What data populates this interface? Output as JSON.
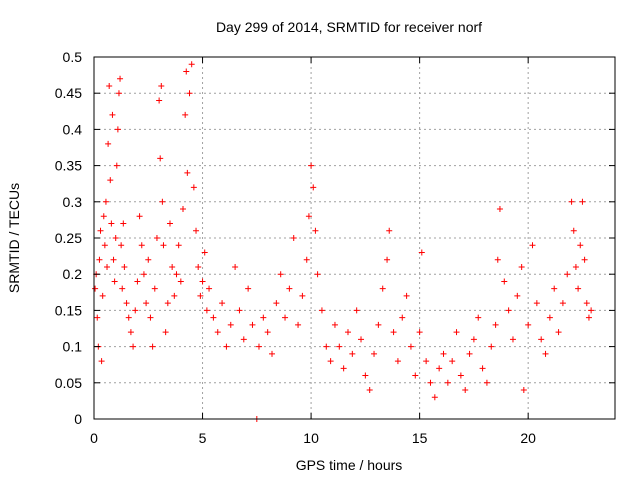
{
  "chart_data": {
    "type": "scatter",
    "title": "Day 299 of 2014, SRMTID for receiver norf",
    "xlabel": "GPS time / hours",
    "ylabel": "SRMTID / TECUs",
    "xlim": [
      0,
      24
    ],
    "ylim": [
      0,
      0.5
    ],
    "x_ticks": [
      0,
      5,
      10,
      15,
      20
    ],
    "x_tick_labels": [
      "0",
      "5",
      "10",
      "15",
      "20"
    ],
    "y_ticks": [
      0,
      0.05,
      0.1,
      0.15,
      0.2,
      0.25,
      0.3,
      0.35,
      0.4,
      0.45,
      0.5
    ],
    "y_tick_labels": [
      "0",
      "0.05",
      "0.1",
      "0.15",
      "0.2",
      "0.25",
      "0.3",
      "0.35",
      "0.4",
      "0.45",
      "0.5"
    ],
    "grid": true,
    "marker": "+",
    "colors": {
      "series": "#ff0000",
      "grid": "#a0a0a0",
      "axis": "#000000"
    },
    "series": [
      {
        "name": "SRMTID",
        "points": [
          [
            0.05,
            0.18
          ],
          [
            0.1,
            0.2
          ],
          [
            0.15,
            0.14
          ],
          [
            0.2,
            0.1
          ],
          [
            0.25,
            0.22
          ],
          [
            0.3,
            0.26
          ],
          [
            0.35,
            0.08
          ],
          [
            0.4,
            0.17
          ],
          [
            0.45,
            0.28
          ],
          [
            0.5,
            0.24
          ],
          [
            0.55,
            0.3
          ],
          [
            0.6,
            0.21
          ],
          [
            0.65,
            0.38
          ],
          [
            0.7,
            0.46
          ],
          [
            0.75,
            0.33
          ],
          [
            0.8,
            0.27
          ],
          [
            0.85,
            0.42
          ],
          [
            0.9,
            0.22
          ],
          [
            0.95,
            0.19
          ],
          [
            1.0,
            0.25
          ],
          [
            1.05,
            0.35
          ],
          [
            1.1,
            0.4
          ],
          [
            1.15,
            0.45
          ],
          [
            1.2,
            0.47
          ],
          [
            1.25,
            0.24
          ],
          [
            1.3,
            0.18
          ],
          [
            1.35,
            0.27
          ],
          [
            1.4,
            0.21
          ],
          [
            1.5,
            0.16
          ],
          [
            1.6,
            0.14
          ],
          [
            1.7,
            0.12
          ],
          [
            1.8,
            0.1
          ],
          [
            1.9,
            0.15
          ],
          [
            2.0,
            0.19
          ],
          [
            2.1,
            0.28
          ],
          [
            2.2,
            0.24
          ],
          [
            2.3,
            0.2
          ],
          [
            2.4,
            0.16
          ],
          [
            2.5,
            0.22
          ],
          [
            2.6,
            0.14
          ],
          [
            2.7,
            0.1
          ],
          [
            2.8,
            0.18
          ],
          [
            2.9,
            0.25
          ],
          [
            3.0,
            0.44
          ],
          [
            3.05,
            0.36
          ],
          [
            3.1,
            0.46
          ],
          [
            3.15,
            0.3
          ],
          [
            3.2,
            0.24
          ],
          [
            3.3,
            0.12
          ],
          [
            3.4,
            0.16
          ],
          [
            3.5,
            0.27
          ],
          [
            3.6,
            0.21
          ],
          [
            3.7,
            0.17
          ],
          [
            3.8,
            0.2
          ],
          [
            3.9,
            0.24
          ],
          [
            4.0,
            0.19
          ],
          [
            4.1,
            0.29
          ],
          [
            4.2,
            0.42
          ],
          [
            4.25,
            0.48
          ],
          [
            4.3,
            0.34
          ],
          [
            4.4,
            0.45
          ],
          [
            4.5,
            0.49
          ],
          [
            4.6,
            0.32
          ],
          [
            4.7,
            0.26
          ],
          [
            4.8,
            0.21
          ],
          [
            4.9,
            0.17
          ],
          [
            5.0,
            0.19
          ],
          [
            5.1,
            0.23
          ],
          [
            5.2,
            0.15
          ],
          [
            5.3,
            0.18
          ],
          [
            5.5,
            0.14
          ],
          [
            5.7,
            0.12
          ],
          [
            5.9,
            0.16
          ],
          [
            6.1,
            0.1
          ],
          [
            6.3,
            0.13
          ],
          [
            6.5,
            0.21
          ],
          [
            6.7,
            0.15
          ],
          [
            6.9,
            0.11
          ],
          [
            7.1,
            0.18
          ],
          [
            7.3,
            0.13
          ],
          [
            7.5,
            0.0
          ],
          [
            7.6,
            0.1
          ],
          [
            7.8,
            0.14
          ],
          [
            8.0,
            0.12
          ],
          [
            8.2,
            0.09
          ],
          [
            8.4,
            0.16
          ],
          [
            8.6,
            0.2
          ],
          [
            8.8,
            0.14
          ],
          [
            9.0,
            0.18
          ],
          [
            9.2,
            0.25
          ],
          [
            9.4,
            0.13
          ],
          [
            9.6,
            0.17
          ],
          [
            9.8,
            0.22
          ],
          [
            9.9,
            0.28
          ],
          [
            10.0,
            0.35
          ],
          [
            10.1,
            0.32
          ],
          [
            10.2,
            0.26
          ],
          [
            10.3,
            0.2
          ],
          [
            10.5,
            0.15
          ],
          [
            10.7,
            0.1
          ],
          [
            10.9,
            0.08
          ],
          [
            11.1,
            0.13
          ],
          [
            11.3,
            0.1
          ],
          [
            11.5,
            0.07
          ],
          [
            11.7,
            0.12
          ],
          [
            11.9,
            0.09
          ],
          [
            12.1,
            0.15
          ],
          [
            12.3,
            0.11
          ],
          [
            12.5,
            0.06
          ],
          [
            12.7,
            0.04
          ],
          [
            12.9,
            0.09
          ],
          [
            13.1,
            0.13
          ],
          [
            13.3,
            0.18
          ],
          [
            13.5,
            0.22
          ],
          [
            13.6,
            0.26
          ],
          [
            13.8,
            0.12
          ],
          [
            14.0,
            0.08
          ],
          [
            14.2,
            0.14
          ],
          [
            14.4,
            0.17
          ],
          [
            14.6,
            0.1
          ],
          [
            14.8,
            0.06
          ],
          [
            15.0,
            0.12
          ],
          [
            15.1,
            0.23
          ],
          [
            15.3,
            0.08
          ],
          [
            15.5,
            0.05
          ],
          [
            15.7,
            0.03
          ],
          [
            15.9,
            0.07
          ],
          [
            16.1,
            0.09
          ],
          [
            16.3,
            0.05
          ],
          [
            16.5,
            0.08
          ],
          [
            16.7,
            0.12
          ],
          [
            16.9,
            0.06
          ],
          [
            17.1,
            0.04
          ],
          [
            17.3,
            0.09
          ],
          [
            17.5,
            0.11
          ],
          [
            17.7,
            0.14
          ],
          [
            17.9,
            0.07
          ],
          [
            18.1,
            0.05
          ],
          [
            18.3,
            0.1
          ],
          [
            18.5,
            0.13
          ],
          [
            18.6,
            0.22
          ],
          [
            18.7,
            0.29
          ],
          [
            18.9,
            0.19
          ],
          [
            19.1,
            0.15
          ],
          [
            19.3,
            0.11
          ],
          [
            19.5,
            0.17
          ],
          [
            19.7,
            0.21
          ],
          [
            19.8,
            0.04
          ],
          [
            20.0,
            0.13
          ],
          [
            20.2,
            0.24
          ],
          [
            20.4,
            0.16
          ],
          [
            20.6,
            0.11
          ],
          [
            20.8,
            0.09
          ],
          [
            21.0,
            0.14
          ],
          [
            21.2,
            0.18
          ],
          [
            21.4,
            0.12
          ],
          [
            21.6,
            0.16
          ],
          [
            21.8,
            0.2
          ],
          [
            22.0,
            0.3
          ],
          [
            22.1,
            0.26
          ],
          [
            22.2,
            0.21
          ],
          [
            22.3,
            0.18
          ],
          [
            22.4,
            0.24
          ],
          [
            22.5,
            0.3
          ],
          [
            22.6,
            0.22
          ],
          [
            22.7,
            0.16
          ],
          [
            22.8,
            0.14
          ],
          [
            22.9,
            0.15
          ]
        ]
      }
    ]
  }
}
